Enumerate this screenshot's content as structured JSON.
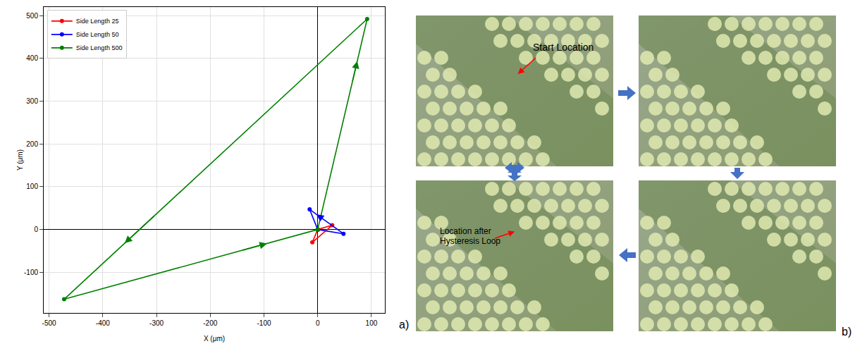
{
  "chart_data": {
    "type": "line",
    "x_label": "X (μm)",
    "y_label": "Y (μm)",
    "series": [
      {
        "name": "Side Length 25",
        "color": "#ff0000",
        "marker": "circle",
        "x": [
          0,
          27,
          -10,
          0
        ],
        "y": [
          0,
          10,
          -30,
          0
        ]
      },
      {
        "name": "Side Length 50",
        "color": "#0000ff",
        "marker": "circle",
        "x": [
          0,
          48,
          -15,
          0
        ],
        "y": [
          0,
          -10,
          47,
          0
        ]
      },
      {
        "name": "Side Length 500",
        "color": "#008000",
        "marker": "circle",
        "x": [
          0,
          92,
          -472,
          0
        ],
        "y": [
          0,
          492,
          -163,
          0
        ]
      }
    ],
    "xlim": [
      -510,
      125
    ],
    "xticks": [
      -500,
      -400,
      -300,
      -200,
      -100,
      0,
      100
    ],
    "ylim": [
      -195,
      520
    ],
    "yticks": [
      -100,
      0,
      100,
      200,
      300,
      400,
      500
    ],
    "grid": true,
    "legend": "upper left"
  },
  "panels": {
    "a": "a)",
    "b": "b)"
  },
  "images": {
    "start_label": "Start Location",
    "end_label": "Location after Hysteresis Loop"
  }
}
